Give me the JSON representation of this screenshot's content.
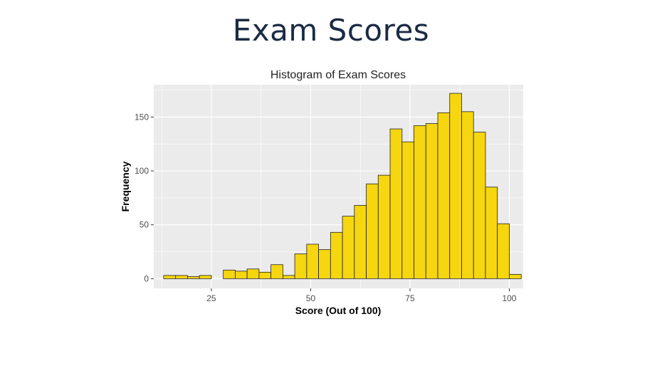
{
  "slide": {
    "title": "Exam Scores"
  },
  "chart_data": {
    "type": "bar",
    "title": "Histogram of Exam Scores",
    "xlabel": "Score (Out of 100)",
    "ylabel": "Frequency",
    "xlim": [
      10.5,
      103.5
    ],
    "ylim": [
      -9,
      180
    ],
    "xticks": [
      25,
      50,
      75,
      100
    ],
    "yticks": [
      0,
      50,
      100,
      150
    ],
    "grid": true,
    "bin_width": 3,
    "bins": [
      {
        "x0": 13,
        "x1": 16,
        "count": 3
      },
      {
        "x0": 16,
        "x1": 19,
        "count": 3
      },
      {
        "x0": 19,
        "x1": 22,
        "count": 2
      },
      {
        "x0": 22,
        "x1": 25,
        "count": 3
      },
      {
        "x0": 25,
        "x1": 28,
        "count": 0
      },
      {
        "x0": 28,
        "x1": 31,
        "count": 8
      },
      {
        "x0": 31,
        "x1": 34,
        "count": 7
      },
      {
        "x0": 34,
        "x1": 37,
        "count": 9
      },
      {
        "x0": 37,
        "x1": 40,
        "count": 6
      },
      {
        "x0": 40,
        "x1": 43,
        "count": 13
      },
      {
        "x0": 43,
        "x1": 46,
        "count": 3
      },
      {
        "x0": 46,
        "x1": 49,
        "count": 23
      },
      {
        "x0": 49,
        "x1": 52,
        "count": 32
      },
      {
        "x0": 52,
        "x1": 55,
        "count": 27
      },
      {
        "x0": 55,
        "x1": 58,
        "count": 43
      },
      {
        "x0": 58,
        "x1": 61,
        "count": 58
      },
      {
        "x0": 61,
        "x1": 64,
        "count": 68
      },
      {
        "x0": 64,
        "x1": 67,
        "count": 88
      },
      {
        "x0": 67,
        "x1": 70,
        "count": 96
      },
      {
        "x0": 70,
        "x1": 73,
        "count": 139
      },
      {
        "x0": 73,
        "x1": 76,
        "count": 127
      },
      {
        "x0": 76,
        "x1": 79,
        "count": 142
      },
      {
        "x0": 79,
        "x1": 82,
        "count": 144
      },
      {
        "x0": 82,
        "x1": 85,
        "count": 154
      },
      {
        "x0": 85,
        "x1": 88,
        "count": 172
      },
      {
        "x0": 88,
        "x1": 91,
        "count": 155
      },
      {
        "x0": 91,
        "x1": 94,
        "count": 136
      },
      {
        "x0": 94,
        "x1": 97,
        "count": 85
      },
      {
        "x0": 97,
        "x1": 100,
        "count": 51
      },
      {
        "x0": 100,
        "x1": 103,
        "count": 4
      }
    ],
    "colors": {
      "bar_fill": "#f5d60f",
      "bar_stroke": "#222222",
      "panel_bg": "#ebebeb",
      "grid": "#ffffff"
    }
  }
}
